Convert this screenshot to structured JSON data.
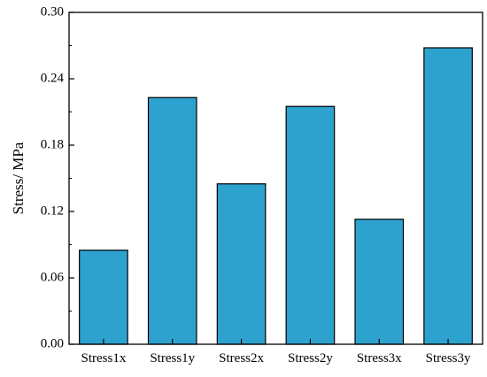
{
  "chart_data": {
    "type": "bar",
    "title": "",
    "xlabel": "",
    "ylabel": "Stress/ MPa",
    "categories": [
      "Stress1x",
      "Stress1y",
      "Stress2x",
      "Stress2y",
      "Stress3x",
      "Stress3y"
    ],
    "values": [
      0.085,
      0.223,
      0.145,
      0.215,
      0.113,
      0.268
    ],
    "ylim": [
      0,
      0.3
    ],
    "yticks": [
      "0.00",
      "0.06",
      "0.12",
      "0.18",
      "0.24",
      "0.30"
    ],
    "grid": false,
    "legend": "none",
    "bar_color": "#2ea2cf",
    "edge_color": "#000000"
  }
}
